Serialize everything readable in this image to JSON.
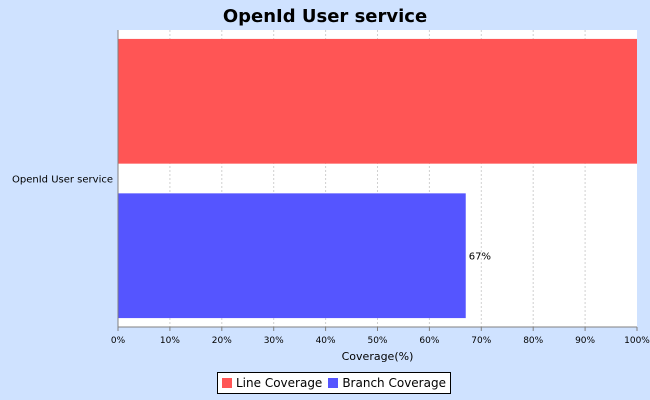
{
  "chart_data": {
    "type": "bar",
    "orientation": "horizontal",
    "title": "OpenId User service",
    "categories": [
      "OpenId User service"
    ],
    "series": [
      {
        "name": "Line Coverage",
        "values": [
          100
        ],
        "color": "#ff5555",
        "data_label": ""
      },
      {
        "name": "Branch Coverage",
        "values": [
          67
        ],
        "color": "#5555ff",
        "data_label": "67%"
      }
    ],
    "xlabel": "Coverage(%)",
    "ylabel": "",
    "xlim": [
      0,
      100
    ],
    "x_ticks": [
      "0%",
      "10%",
      "20%",
      "30%",
      "40%",
      "50%",
      "60%",
      "70%",
      "80%",
      "90%",
      "100%"
    ],
    "grid": true,
    "legend_position": "bottom"
  }
}
